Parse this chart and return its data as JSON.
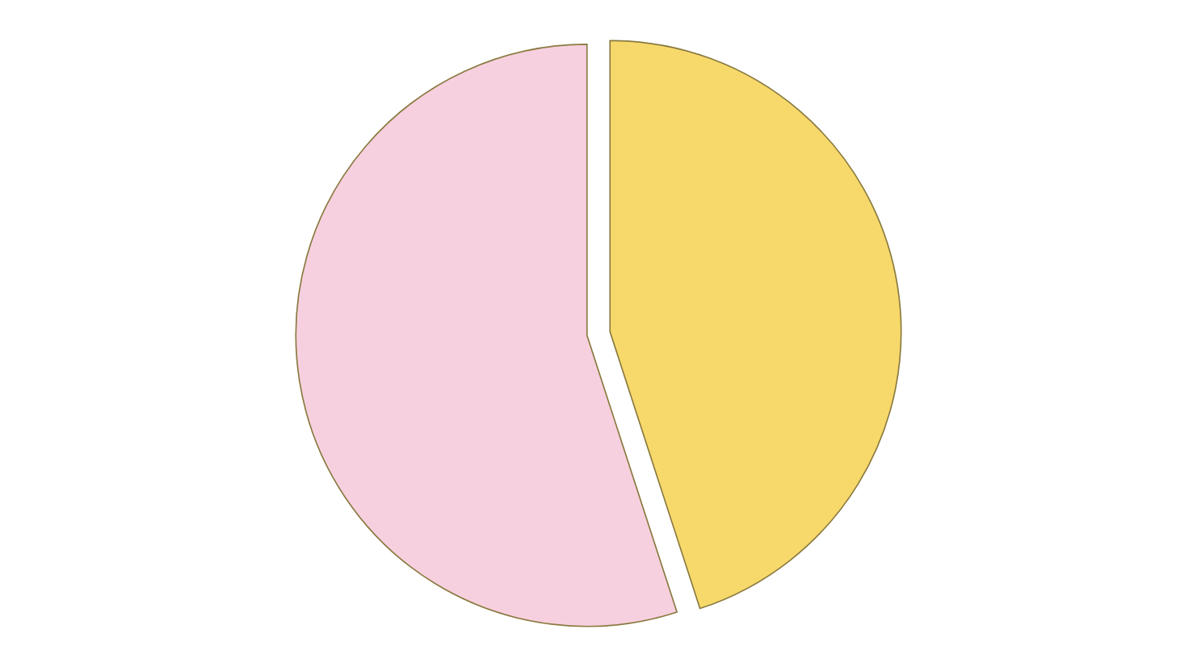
{
  "chart_data": {
    "type": "pie",
    "categories": [
      null,
      null
    ],
    "values": [
      45,
      55
    ],
    "colors": [
      "#f7d96b",
      "#f7d0df"
    ]
  }
}
